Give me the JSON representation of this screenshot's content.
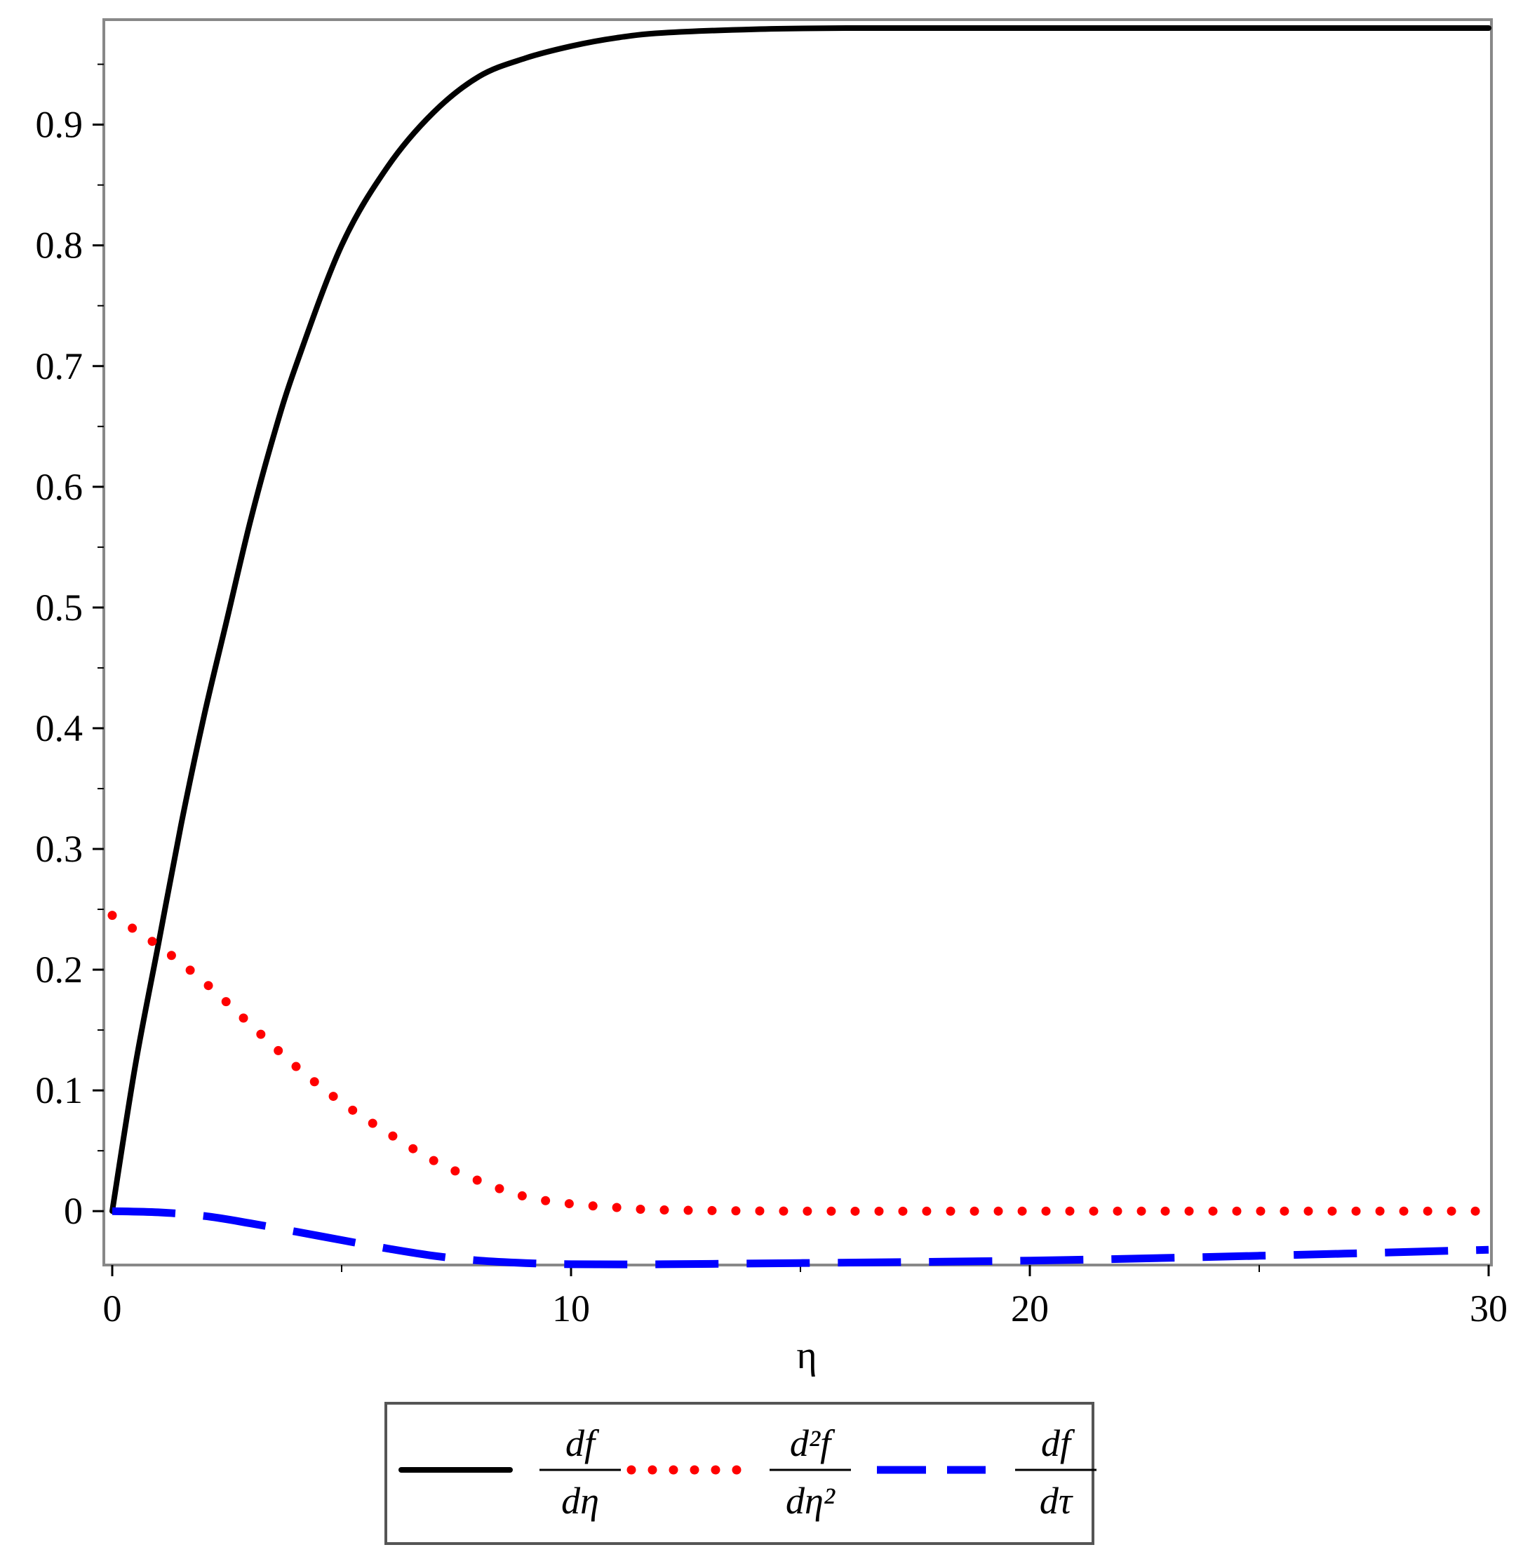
{
  "chart_data": {
    "type": "line",
    "xlabel": "η",
    "ylabel": "",
    "xlim": [
      0,
      30
    ],
    "ylim": [
      -0.04,
      0.98
    ],
    "x_ticks": [
      0,
      10,
      20,
      30
    ],
    "x_tick_labels": [
      "0",
      "10",
      "20",
      "30"
    ],
    "y_ticks": [
      0,
      0.1,
      0.2,
      0.3,
      0.4,
      0.5,
      0.6,
      0.7,
      0.8,
      0.9
    ],
    "y_tick_labels": [
      "0",
      "0.1",
      "0.2",
      "0.3",
      "0.4",
      "0.5",
      "0.6",
      "0.7",
      "0.8",
      "0.9"
    ],
    "grid": false,
    "legend_position": "bottom-outside",
    "series": [
      {
        "name": "df/dη",
        "legend_num": "df",
        "legend_den": "dη",
        "style": "solid",
        "color": "#000000",
        "x": [
          0,
          0.5,
          1,
          1.5,
          2,
          2.5,
          3,
          3.5,
          4,
          5,
          6,
          7,
          8,
          9,
          10,
          11,
          12,
          14,
          16,
          20,
          25,
          30
        ],
        "y": [
          0,
          0.12,
          0.22,
          0.32,
          0.41,
          0.49,
          0.57,
          0.64,
          0.7,
          0.8,
          0.865,
          0.91,
          0.94,
          0.955,
          0.965,
          0.972,
          0.976,
          0.979,
          0.98,
          0.98,
          0.98,
          0.98
        ]
      },
      {
        "name": "d²f/dη²",
        "legend_num": "d²f",
        "legend_den": "dη²",
        "style": "dotted",
        "color": "#ff0000",
        "x": [
          0,
          1,
          2,
          3,
          4,
          5,
          6,
          7,
          8,
          9,
          10,
          11,
          12,
          15,
          20,
          25,
          30
        ],
        "y": [
          0.245,
          0.22,
          0.19,
          0.155,
          0.12,
          0.09,
          0.065,
          0.042,
          0.025,
          0.012,
          0.006,
          0.003,
          0.001,
          0,
          0,
          0,
          0
        ]
      },
      {
        "name": "df/dτ",
        "legend_num": "df",
        "legend_den": "dτ",
        "style": "dashed",
        "color": "#0000ff",
        "x": [
          0,
          1,
          2,
          3,
          4,
          5,
          6,
          7,
          8,
          9,
          10,
          12,
          15,
          20,
          25,
          30
        ],
        "y": [
          0,
          -0.001,
          -0.004,
          -0.01,
          -0.017,
          -0.024,
          -0.031,
          -0.037,
          -0.041,
          -0.043,
          -0.044,
          -0.044,
          -0.043,
          -0.041,
          -0.037,
          -0.032
        ]
      }
    ]
  }
}
